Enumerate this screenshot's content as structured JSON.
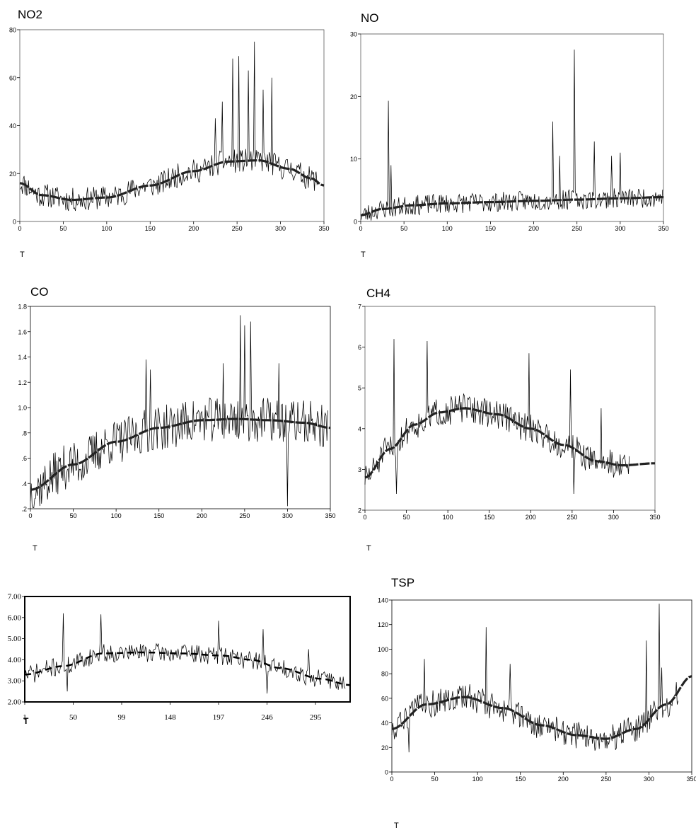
{
  "chart_data": [
    {
      "type": "line",
      "title": "NO2",
      "xlabel": "T",
      "xlim": [
        0,
        350
      ],
      "ylim": [
        0,
        80
      ],
      "xticks": [
        0,
        50,
        100,
        150,
        200,
        250,
        300,
        350
      ],
      "yticks": [
        0,
        20,
        40,
        60,
        80
      ],
      "fit_ctrl": [
        [
          0,
          16
        ],
        [
          25,
          11
        ],
        [
          60,
          9
        ],
        [
          100,
          10
        ],
        [
          150,
          15
        ],
        [
          200,
          21
        ],
        [
          240,
          25
        ],
        [
          275,
          25.5
        ],
        [
          310,
          22
        ],
        [
          335,
          18
        ],
        [
          350,
          15
        ]
      ],
      "noise": {
        "n": 345,
        "seed": 11,
        "amp": 5,
        "spikes": [
          [
            225,
            43
          ],
          [
            245,
            68
          ],
          [
            252,
            69
          ],
          [
            263,
            63
          ],
          [
            270,
            75
          ],
          [
            290,
            60
          ],
          [
            280,
            55
          ],
          [
            233,
            50
          ]
        ]
      }
    },
    {
      "type": "line",
      "title": "NO",
      "xlabel": "T",
      "xlim": [
        0,
        350
      ],
      "ylim": [
        0,
        30
      ],
      "xticks": [
        0,
        50,
        100,
        150,
        200,
        250,
        300,
        350
      ],
      "yticks": [
        0,
        10,
        20,
        30
      ],
      "fit_ctrl": [
        [
          0,
          1
        ],
        [
          25,
          2
        ],
        [
          60,
          2.6
        ],
        [
          100,
          2.9
        ],
        [
          150,
          3.1
        ],
        [
          200,
          3.3
        ],
        [
          250,
          3.5
        ],
        [
          300,
          3.7
        ],
        [
          350,
          3.9
        ]
      ],
      "noise": {
        "n": 350,
        "seed": 23,
        "amp": 1.6,
        "spikes": [
          [
            32,
            19.3
          ],
          [
            35,
            9
          ],
          [
            222,
            16
          ],
          [
            230,
            10.5
          ],
          [
            247,
            27.5
          ],
          [
            270,
            12.8
          ],
          [
            290,
            10.5
          ],
          [
            300,
            11
          ]
        ]
      }
    },
    {
      "type": "line",
      "title": "CO",
      "xlabel": "T",
      "xlim": [
        0,
        350
      ],
      "ylim": [
        0.2,
        1.8
      ],
      "xticks": [
        0,
        50,
        100,
        150,
        200,
        250,
        300,
        350
      ],
      "yticks": [
        0.2,
        0.4,
        0.6,
        0.8,
        1.0,
        1.2,
        1.4,
        1.6,
        1.8
      ],
      "ytick_labels": [
        ".2",
        ".4",
        ".6",
        ".8",
        "1.0",
        "1.2",
        "1.4",
        "1.6",
        "1.8"
      ],
      "fit_ctrl": [
        [
          0,
          0.35
        ],
        [
          50,
          0.55
        ],
        [
          100,
          0.73
        ],
        [
          150,
          0.84
        ],
        [
          200,
          0.9
        ],
        [
          240,
          0.91
        ],
        [
          280,
          0.9
        ],
        [
          320,
          0.88
        ],
        [
          350,
          0.84
        ]
      ],
      "noise": {
        "n": 348,
        "seed": 37,
        "amp": 0.18,
        "spikes": [
          [
            245,
            1.73
          ],
          [
            250,
            1.65
          ],
          [
            257,
            1.68
          ],
          [
            300,
            0.22
          ],
          [
            135,
            1.38
          ],
          [
            140,
            1.3
          ],
          [
            225,
            1.35
          ],
          [
            290,
            1.35
          ]
        ]
      }
    },
    {
      "type": "line",
      "title": "CH4",
      "xlabel": "T",
      "xlim": [
        0,
        350
      ],
      "ylim": [
        2,
        7
      ],
      "xticks": [
        0,
        50,
        100,
        150,
        200,
        250,
        300,
        350
      ],
      "yticks": [
        2,
        3,
        4,
        5,
        6,
        7
      ],
      "fit_ctrl": [
        [
          0,
          2.8
        ],
        [
          30,
          3.5
        ],
        [
          60,
          4.1
        ],
        [
          90,
          4.4
        ],
        [
          120,
          4.5
        ],
        [
          160,
          4.35
        ],
        [
          200,
          4.0
        ],
        [
          240,
          3.6
        ],
        [
          280,
          3.2
        ],
        [
          310,
          3.1
        ],
        [
          350,
          3.15
        ]
      ],
      "noise": {
        "n": 320,
        "seed": 51,
        "amp": 0.35,
        "spikes": [
          [
            35,
            6.2
          ],
          [
            38,
            2.4
          ],
          [
            75,
            6.15
          ],
          [
            198,
            5.85
          ],
          [
            248,
            5.45
          ],
          [
            252,
            2.4
          ],
          [
            285,
            4.5
          ]
        ]
      }
    },
    {
      "type": "line",
      "title": "",
      "xlabel": "T",
      "xlim": [
        1,
        330
      ],
      "ylim": [
        2,
        7
      ],
      "xticks": [
        1,
        50,
        99,
        148,
        197,
        246,
        295
      ],
      "yticks": [
        2,
        3,
        4,
        5,
        6,
        7
      ],
      "ytick_labels": [
        "2.00",
        "3.00",
        "4.00",
        "5.00",
        "6.00",
        "7.00"
      ],
      "fit_ctrl": [
        [
          1,
          3.3
        ],
        [
          40,
          3.7
        ],
        [
          80,
          4.3
        ],
        [
          120,
          4.35
        ],
        [
          160,
          4.3
        ],
        [
          200,
          4.2
        ],
        [
          230,
          4.0
        ],
        [
          260,
          3.6
        ],
        [
          300,
          3.1
        ],
        [
          330,
          2.8
        ]
      ],
      "noise": {
        "n": 325,
        "seed": 71,
        "amp": 0.45,
        "spikes": [
          [
            40,
            6.2
          ],
          [
            44,
            2.5
          ],
          [
            78,
            6.15
          ],
          [
            197,
            5.85
          ],
          [
            242,
            5.45
          ],
          [
            246,
            2.4
          ],
          [
            288,
            4.5
          ]
        ]
      }
    },
    {
      "type": "line",
      "title": "TSP",
      "xlabel": "T",
      "xlim": [
        0,
        350
      ],
      "ylim": [
        0,
        140
      ],
      "xticks": [
        0,
        50,
        100,
        150,
        200,
        250,
        300,
        350
      ],
      "yticks": [
        0,
        20,
        40,
        60,
        80,
        100,
        120,
        140
      ],
      "fit_ctrl": [
        [
          0,
          35
        ],
        [
          40,
          55
        ],
        [
          85,
          61
        ],
        [
          130,
          52
        ],
        [
          175,
          38
        ],
        [
          215,
          30
        ],
        [
          250,
          27
        ],
        [
          285,
          35
        ],
        [
          320,
          55
        ],
        [
          350,
          78
        ]
      ],
      "noise": {
        "n": 335,
        "seed": 93,
        "amp": 11,
        "spikes": [
          [
            38,
            92
          ],
          [
            110,
            118
          ],
          [
            138,
            88
          ],
          [
            297,
            107
          ],
          [
            312,
            137
          ],
          [
            315,
            85
          ],
          [
            20,
            16
          ]
        ]
      }
    }
  ]
}
